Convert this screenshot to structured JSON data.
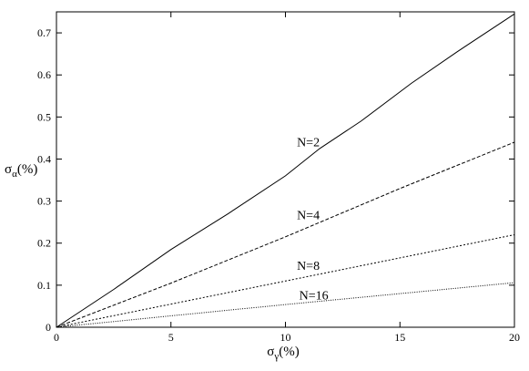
{
  "chart_data": {
    "type": "line",
    "title": "",
    "xlabel": "σ",
    "xlabel_sub": "γ",
    "xlabel_suffix": "(%)",
    "ylabel": "σ",
    "ylabel_sub": "α",
    "ylabel_suffix": "(%)",
    "xlim": [
      0,
      20
    ],
    "ylim": [
      0,
      0.75
    ],
    "xticks": [
      0,
      5,
      10,
      15,
      20
    ],
    "xtick_labels": [
      "0",
      "5",
      "10",
      "15",
      "20"
    ],
    "yticks": [
      0,
      0.1,
      0.2,
      0.3,
      0.4,
      0.5,
      0.6,
      0.7
    ],
    "ytick_labels": [
      "0",
      "0.1",
      "0.2",
      "0.3",
      "0.4",
      "0.5",
      "0.6",
      "0.7"
    ],
    "grid": false,
    "series": [
      {
        "name": "N=2",
        "style": "solid",
        "x": [
          0,
          2.5,
          5,
          7.5,
          10,
          11.5,
          13.3,
          15.5,
          17.5,
          20
        ],
        "y": [
          0,
          0.09,
          0.185,
          0.27,
          0.36,
          0.425,
          0.49,
          0.58,
          0.655,
          0.745
        ],
        "label_at": [
          10.5,
          0.43
        ]
      },
      {
        "name": "N=4",
        "style": "dashed",
        "x": [
          0,
          5,
          10,
          15,
          20
        ],
        "y": [
          0,
          0.105,
          0.215,
          0.33,
          0.44
        ],
        "label_at": [
          10.5,
          0.257
        ]
      },
      {
        "name": "N=8",
        "style": "short-dashed",
        "x": [
          0,
          5,
          10,
          15,
          20
        ],
        "y": [
          0,
          0.055,
          0.11,
          0.165,
          0.22
        ],
        "label_at": [
          10.5,
          0.137
        ]
      },
      {
        "name": "N=16",
        "style": "dotted",
        "x": [
          0,
          5,
          10,
          15,
          20
        ],
        "y": [
          0,
          0.027,
          0.054,
          0.08,
          0.106
        ],
        "label_at": [
          10.6,
          0.066
        ]
      }
    ]
  }
}
